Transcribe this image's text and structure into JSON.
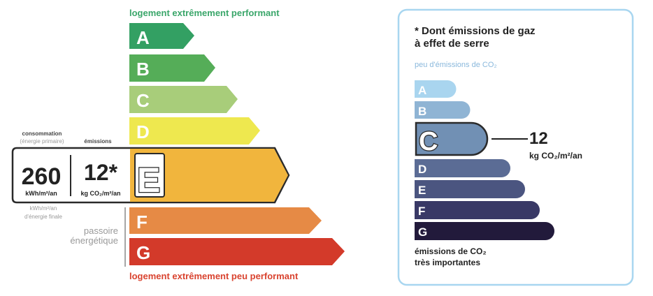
{
  "energy": {
    "top_label": "logement extrêmement performant",
    "bottom_label": "logement extrêmement peu performant",
    "classes": [
      {
        "letter": "A",
        "color": "#33a063"
      },
      {
        "letter": "B",
        "color": "#55ad58"
      },
      {
        "letter": "C",
        "color": "#a8cd7a"
      },
      {
        "letter": "D",
        "color": "#eee84f"
      },
      {
        "letter": "E",
        "color": "#f1b53d"
      },
      {
        "letter": "F",
        "color": "#e68a45"
      },
      {
        "letter": "G",
        "color": "#d33a2a"
      }
    ],
    "current_class": "E",
    "consumption_header": "consommation",
    "consumption_subheader": "(énergie primaire)",
    "emissions_header": "émissions",
    "consumption_value": "260",
    "consumption_unit": "kWh/m²/an",
    "emissions_value": "12*",
    "emissions_unit": "kg CO₂/m²/an",
    "final_energy_unit": "kWh/m²/an",
    "final_energy_label": "d'énergie finale",
    "passoire_line1": "passoire",
    "passoire_line2": "énergétique"
  },
  "ghg": {
    "title_line1": "* Dont émissions de gaz",
    "title_line2": "à effet de serre",
    "top_label": "peu d'émissions de CO₂",
    "bottom_label_line1": "émissions de CO₂",
    "bottom_label_line2": "très importantes",
    "classes": [
      {
        "letter": "A",
        "color": "#a9d5ef"
      },
      {
        "letter": "B",
        "color": "#8fb4d4"
      },
      {
        "letter": "C",
        "color": "#7190b4"
      },
      {
        "letter": "D",
        "color": "#5b6c95"
      },
      {
        "letter": "E",
        "color": "#4b5580"
      },
      {
        "letter": "F",
        "color": "#393966"
      },
      {
        "letter": "G",
        "color": "#221a3b"
      }
    ],
    "current_class": "C",
    "value": "12",
    "unit": "kg CO₂/m²/an",
    "border_color": "#a8d6f0"
  }
}
